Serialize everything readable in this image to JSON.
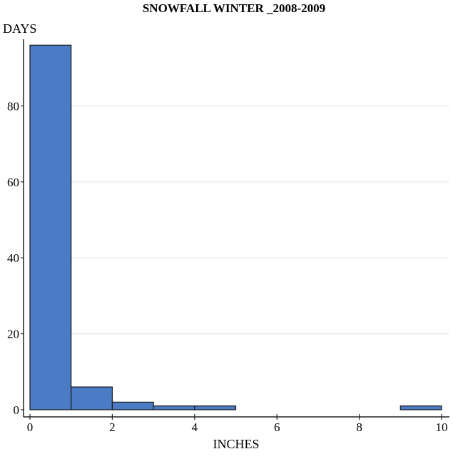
{
  "chart_data": {
    "type": "bar",
    "subtype": "histogram",
    "title": "SNOWFALL WINTER _2008-2009",
    "xlabel": "INCHES",
    "ylabel": "DAYS",
    "bins": [
      {
        "x0": 0,
        "x1": 1,
        "count": 96
      },
      {
        "x0": 1,
        "x1": 2,
        "count": 6
      },
      {
        "x0": 2,
        "x1": 3,
        "count": 2
      },
      {
        "x0": 3,
        "x1": 4,
        "count": 1
      },
      {
        "x0": 4,
        "x1": 5,
        "count": 1
      },
      {
        "x0": 9,
        "x1": 10,
        "count": 1
      }
    ],
    "categories": [
      "0-1",
      "1-2",
      "2-3",
      "3-4",
      "4-5",
      "9-10"
    ],
    "values": [
      96,
      6,
      2,
      1,
      1,
      1
    ],
    "xlim": [
      0,
      10
    ],
    "ylim": [
      0,
      96
    ],
    "xticks": [
      0,
      2,
      4,
      6,
      8,
      10
    ],
    "yticks": [
      0,
      20,
      40,
      60,
      80
    ],
    "grid": "horizontal",
    "legend": "none",
    "colors": {
      "bar_fill": "#4a7bc4",
      "bar_stroke": "#1a1a1a",
      "grid": "#e6e6e6",
      "axis": "#222222"
    }
  }
}
